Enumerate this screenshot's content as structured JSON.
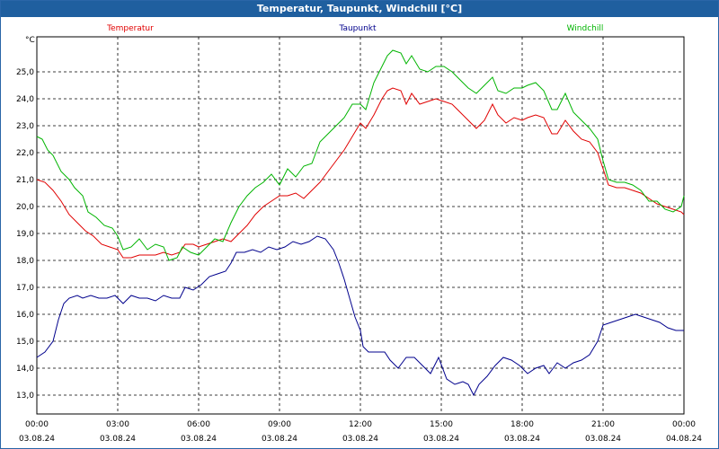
{
  "window": {
    "title": "Temperatur, Taupunkt, Windchill [°C]"
  },
  "chart_data": {
    "type": "line",
    "title": "Temperatur, Taupunkt, Windchill [°C]",
    "ylabel": "°C",
    "ylim": [
      12.3,
      26.3
    ],
    "xlim": [
      0,
      24
    ],
    "grid": true,
    "legend": "top",
    "y_ticks": [
      "13,0",
      "14,0",
      "15,0",
      "16,0",
      "17,0",
      "18,0",
      "19,0",
      "20,0",
      "21,0",
      "22,0",
      "23,0",
      "24,0",
      "25,0"
    ],
    "x_ticks": [
      {
        "time": "00:00",
        "date": "03.08.24"
      },
      {
        "time": "03:00",
        "date": "03.08.24"
      },
      {
        "time": "06:00",
        "date": "03.08.24"
      },
      {
        "time": "09:00",
        "date": "03.08.24"
      },
      {
        "time": "12:00",
        "date": "03.08.24"
      },
      {
        "time": "15:00",
        "date": "03.08.24"
      },
      {
        "time": "18:00",
        "date": "03.08.24"
      },
      {
        "time": "21:00",
        "date": "03.08.24"
      },
      {
        "time": "00:00",
        "date": "04.08.24"
      }
    ],
    "series": [
      {
        "name": "Temperatur",
        "color": "#e00000",
        "points": [
          [
            0,
            21.0
          ],
          [
            0.3,
            20.9
          ],
          [
            0.6,
            20.6
          ],
          [
            0.9,
            20.2
          ],
          [
            1.2,
            19.7
          ],
          [
            1.5,
            19.4
          ],
          [
            1.8,
            19.1
          ],
          [
            2.1,
            18.9
          ],
          [
            2.4,
            18.6
          ],
          [
            2.7,
            18.5
          ],
          [
            3.0,
            18.4
          ],
          [
            3.2,
            18.1
          ],
          [
            3.5,
            18.1
          ],
          [
            3.8,
            18.2
          ],
          [
            4.1,
            18.2
          ],
          [
            4.4,
            18.2
          ],
          [
            4.7,
            18.3
          ],
          [
            5.0,
            18.2
          ],
          [
            5.3,
            18.3
          ],
          [
            5.5,
            18.6
          ],
          [
            5.8,
            18.6
          ],
          [
            6.0,
            18.5
          ],
          [
            6.3,
            18.6
          ],
          [
            6.6,
            18.7
          ],
          [
            6.9,
            18.8
          ],
          [
            7.2,
            18.7
          ],
          [
            7.5,
            19.0
          ],
          [
            7.8,
            19.3
          ],
          [
            8.1,
            19.7
          ],
          [
            8.4,
            20.0
          ],
          [
            8.7,
            20.2
          ],
          [
            9.0,
            20.4
          ],
          [
            9.3,
            20.4
          ],
          [
            9.6,
            20.5
          ],
          [
            9.9,
            20.3
          ],
          [
            10.2,
            20.6
          ],
          [
            10.5,
            20.9
          ],
          [
            10.8,
            21.3
          ],
          [
            11.1,
            21.7
          ],
          [
            11.4,
            22.1
          ],
          [
            11.7,
            22.6
          ],
          [
            12.0,
            23.1
          ],
          [
            12.2,
            22.9
          ],
          [
            12.5,
            23.4
          ],
          [
            12.8,
            24.0
          ],
          [
            13.0,
            24.3
          ],
          [
            13.2,
            24.4
          ],
          [
            13.5,
            24.3
          ],
          [
            13.7,
            23.8
          ],
          [
            13.9,
            24.2
          ],
          [
            14.2,
            23.8
          ],
          [
            14.5,
            23.9
          ],
          [
            14.8,
            24.0
          ],
          [
            15.1,
            23.9
          ],
          [
            15.4,
            23.8
          ],
          [
            15.7,
            23.5
          ],
          [
            16.0,
            23.2
          ],
          [
            16.3,
            22.9
          ],
          [
            16.6,
            23.2
          ],
          [
            16.9,
            23.8
          ],
          [
            17.1,
            23.4
          ],
          [
            17.4,
            23.1
          ],
          [
            17.7,
            23.3
          ],
          [
            18.0,
            23.2
          ],
          [
            18.2,
            23.3
          ],
          [
            18.5,
            23.4
          ],
          [
            18.8,
            23.3
          ],
          [
            19.1,
            22.7
          ],
          [
            19.3,
            22.7
          ],
          [
            19.6,
            23.2
          ],
          [
            19.9,
            22.8
          ],
          [
            20.2,
            22.5
          ],
          [
            20.5,
            22.4
          ],
          [
            20.8,
            22.0
          ],
          [
            21.0,
            21.4
          ],
          [
            21.2,
            20.8
          ],
          [
            21.5,
            20.7
          ],
          [
            21.8,
            20.7
          ],
          [
            22.1,
            20.6
          ],
          [
            22.4,
            20.5
          ],
          [
            22.7,
            20.3
          ],
          [
            23.0,
            20.1
          ],
          [
            23.3,
            20.0
          ],
          [
            23.6,
            19.9
          ],
          [
            23.9,
            19.8
          ],
          [
            24.0,
            19.7
          ]
        ]
      },
      {
        "name": "Taupunkt",
        "color": "#00008c",
        "points": [
          [
            0,
            14.4
          ],
          [
            0.3,
            14.6
          ],
          [
            0.6,
            15.0
          ],
          [
            0.8,
            15.8
          ],
          [
            1.0,
            16.4
          ],
          [
            1.2,
            16.6
          ],
          [
            1.5,
            16.7
          ],
          [
            1.7,
            16.6
          ],
          [
            2.0,
            16.7
          ],
          [
            2.3,
            16.6
          ],
          [
            2.6,
            16.6
          ],
          [
            2.9,
            16.7
          ],
          [
            3.0,
            16.6
          ],
          [
            3.2,
            16.4
          ],
          [
            3.5,
            16.7
          ],
          [
            3.8,
            16.6
          ],
          [
            4.1,
            16.6
          ],
          [
            4.4,
            16.5
          ],
          [
            4.7,
            16.7
          ],
          [
            5.0,
            16.6
          ],
          [
            5.3,
            16.6
          ],
          [
            5.5,
            17.0
          ],
          [
            5.8,
            16.9
          ],
          [
            6.1,
            17.1
          ],
          [
            6.4,
            17.4
          ],
          [
            6.7,
            17.5
          ],
          [
            7.0,
            17.6
          ],
          [
            7.2,
            17.9
          ],
          [
            7.4,
            18.3
          ],
          [
            7.7,
            18.3
          ],
          [
            8.0,
            18.4
          ],
          [
            8.3,
            18.3
          ],
          [
            8.6,
            18.5
          ],
          [
            8.9,
            18.4
          ],
          [
            9.2,
            18.5
          ],
          [
            9.5,
            18.7
          ],
          [
            9.8,
            18.6
          ],
          [
            10.1,
            18.7
          ],
          [
            10.4,
            18.9
          ],
          [
            10.7,
            18.8
          ],
          [
            11.0,
            18.4
          ],
          [
            11.2,
            17.9
          ],
          [
            11.4,
            17.3
          ],
          [
            11.6,
            16.6
          ],
          [
            11.8,
            15.9
          ],
          [
            12.0,
            15.4
          ],
          [
            12.1,
            14.8
          ],
          [
            12.3,
            14.6
          ],
          [
            12.6,
            14.6
          ],
          [
            12.9,
            14.6
          ],
          [
            13.1,
            14.3
          ],
          [
            13.4,
            14.0
          ],
          [
            13.7,
            14.4
          ],
          [
            14.0,
            14.4
          ],
          [
            14.3,
            14.1
          ],
          [
            14.6,
            13.8
          ],
          [
            14.9,
            14.4
          ],
          [
            15.2,
            13.6
          ],
          [
            15.5,
            13.4
          ],
          [
            15.8,
            13.5
          ],
          [
            16.0,
            13.4
          ],
          [
            16.2,
            13.0
          ],
          [
            16.4,
            13.4
          ],
          [
            16.7,
            13.7
          ],
          [
            17.0,
            14.1
          ],
          [
            17.3,
            14.4
          ],
          [
            17.6,
            14.3
          ],
          [
            17.9,
            14.1
          ],
          [
            18.2,
            13.8
          ],
          [
            18.5,
            14.0
          ],
          [
            18.8,
            14.1
          ],
          [
            19.0,
            13.8
          ],
          [
            19.3,
            14.2
          ],
          [
            19.6,
            14.0
          ],
          [
            19.9,
            14.2
          ],
          [
            20.2,
            14.3
          ],
          [
            20.5,
            14.5
          ],
          [
            20.8,
            15.0
          ],
          [
            21.0,
            15.6
          ],
          [
            21.3,
            15.7
          ],
          [
            21.6,
            15.8
          ],
          [
            21.9,
            15.9
          ],
          [
            22.2,
            16.0
          ],
          [
            22.5,
            15.9
          ],
          [
            22.8,
            15.8
          ],
          [
            23.1,
            15.7
          ],
          [
            23.4,
            15.5
          ],
          [
            23.7,
            15.4
          ],
          [
            24.0,
            15.4
          ]
        ]
      },
      {
        "name": "Windchill",
        "color": "#00b400",
        "points": [
          [
            0,
            22.6
          ],
          [
            0.2,
            22.5
          ],
          [
            0.4,
            22.1
          ],
          [
            0.6,
            21.9
          ],
          [
            0.9,
            21.3
          ],
          [
            1.2,
            21.0
          ],
          [
            1.4,
            20.7
          ],
          [
            1.7,
            20.4
          ],
          [
            1.9,
            19.8
          ],
          [
            2.2,
            19.6
          ],
          [
            2.5,
            19.3
          ],
          [
            2.8,
            19.2
          ],
          [
            3.0,
            18.9
          ],
          [
            3.2,
            18.4
          ],
          [
            3.5,
            18.5
          ],
          [
            3.8,
            18.8
          ],
          [
            4.1,
            18.4
          ],
          [
            4.4,
            18.6
          ],
          [
            4.7,
            18.5
          ],
          [
            4.9,
            18.0
          ],
          [
            5.2,
            18.1
          ],
          [
            5.4,
            18.5
          ],
          [
            5.7,
            18.3
          ],
          [
            6.0,
            18.2
          ],
          [
            6.3,
            18.5
          ],
          [
            6.6,
            18.8
          ],
          [
            6.9,
            18.7
          ],
          [
            7.2,
            19.4
          ],
          [
            7.5,
            20.0
          ],
          [
            7.8,
            20.4
          ],
          [
            8.1,
            20.7
          ],
          [
            8.4,
            20.9
          ],
          [
            8.7,
            21.2
          ],
          [
            9.0,
            20.8
          ],
          [
            9.3,
            21.4
          ],
          [
            9.6,
            21.1
          ],
          [
            9.9,
            21.5
          ],
          [
            10.2,
            21.6
          ],
          [
            10.5,
            22.4
          ],
          [
            10.8,
            22.7
          ],
          [
            11.1,
            23.0
          ],
          [
            11.4,
            23.3
          ],
          [
            11.7,
            23.8
          ],
          [
            12.0,
            23.8
          ],
          [
            12.2,
            23.6
          ],
          [
            12.5,
            24.6
          ],
          [
            12.8,
            25.2
          ],
          [
            13.0,
            25.6
          ],
          [
            13.2,
            25.8
          ],
          [
            13.5,
            25.7
          ],
          [
            13.7,
            25.3
          ],
          [
            13.9,
            25.6
          ],
          [
            14.2,
            25.1
          ],
          [
            14.5,
            25.0
          ],
          [
            14.8,
            25.2
          ],
          [
            15.1,
            25.2
          ],
          [
            15.4,
            25.0
          ],
          [
            15.7,
            24.7
          ],
          [
            16.0,
            24.4
          ],
          [
            16.3,
            24.2
          ],
          [
            16.6,
            24.5
          ],
          [
            16.9,
            24.8
          ],
          [
            17.1,
            24.3
          ],
          [
            17.4,
            24.2
          ],
          [
            17.7,
            24.4
          ],
          [
            18.0,
            24.4
          ],
          [
            18.2,
            24.5
          ],
          [
            18.5,
            24.6
          ],
          [
            18.8,
            24.3
          ],
          [
            19.1,
            23.6
          ],
          [
            19.3,
            23.6
          ],
          [
            19.6,
            24.2
          ],
          [
            19.9,
            23.5
          ],
          [
            20.2,
            23.2
          ],
          [
            20.5,
            22.9
          ],
          [
            20.8,
            22.5
          ],
          [
            21.0,
            21.7
          ],
          [
            21.2,
            21.0
          ],
          [
            21.5,
            20.9
          ],
          [
            21.8,
            20.9
          ],
          [
            22.1,
            20.8
          ],
          [
            22.4,
            20.6
          ],
          [
            22.7,
            20.2
          ],
          [
            23.0,
            20.2
          ],
          [
            23.3,
            19.9
          ],
          [
            23.6,
            19.8
          ],
          [
            23.9,
            20.0
          ],
          [
            24.0,
            20.4
          ]
        ]
      }
    ]
  }
}
